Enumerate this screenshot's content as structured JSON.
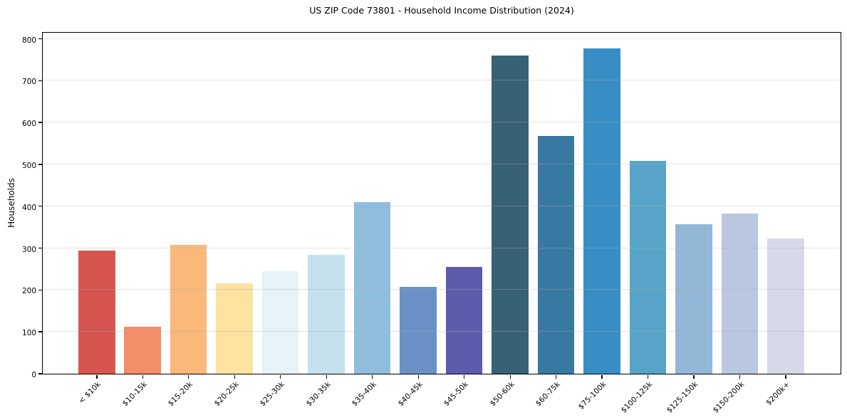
{
  "chart_data": {
    "type": "bar",
    "title": "US ZIP Code 73801 - Household Income Distribution (2024)",
    "xlabel": "",
    "ylabel": "Households",
    "categories": [
      "< $10k",
      "$10-15k",
      "$15-20k",
      "$20-25k",
      "$25-30k",
      "$30-35k",
      "$35-40k",
      "$40-45k",
      "$45-50k",
      "$50-60k",
      "$60-75k",
      "$75-100k",
      "$100-125k",
      "$125-150k",
      "$150-200k",
      "$200k+"
    ],
    "values": [
      295,
      113,
      308,
      216,
      245,
      284,
      410,
      208,
      255,
      760,
      568,
      778,
      508,
      357,
      382,
      323
    ],
    "bar_colors": [
      "#d6564f",
      "#f28d68",
      "#fab87a",
      "#fde2a0",
      "#e6f2f6",
      "#c4e1ed",
      "#8fbedd",
      "#6991c5",
      "#5c5cac",
      "#376275",
      "#3879a2",
      "#388ec4",
      "#58a4c8",
      "#93b7d7",
      "#bac7e1",
      "#d8d9e8"
    ],
    "ylim": [
      0,
      818
    ],
    "yticks": [
      0,
      100,
      200,
      300,
      400,
      500,
      600,
      700,
      800
    ],
    "grid": "horizontal",
    "legend": "none",
    "background_color": "#ffffff",
    "grid_color": "#b0b0b0",
    "spine_color": "#000000"
  }
}
